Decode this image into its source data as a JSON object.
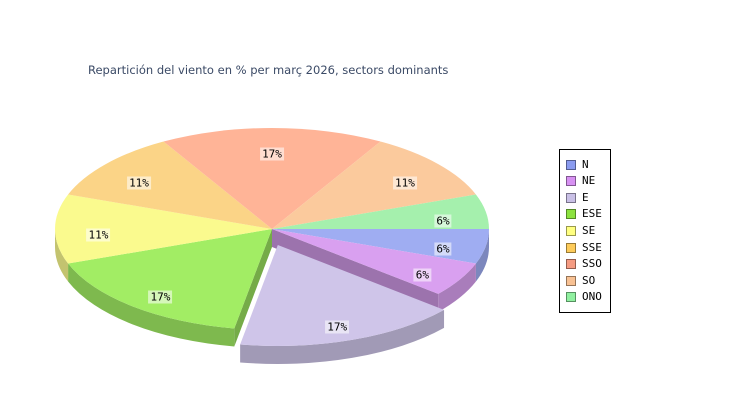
{
  "chart_data": {
    "type": "pie",
    "three_d": true,
    "title": "Repartición del viento en % per març 2026, sectors dominants",
    "title_color": "#3b4a66",
    "background_color": "#ffffff",
    "legend_position": "right",
    "exploded_slice": "E",
    "label_text_color": "#000000",
    "slices": [
      {
        "label": "N",
        "percent_label": "6%",
        "percent": 6,
        "share_deg": 20,
        "color": "#9fadf2",
        "legend_color": "#8a9bf0"
      },
      {
        "label": "NE",
        "percent_label": "6%",
        "percent": 6,
        "share_deg": 20,
        "color": "#d9a0f0",
        "legend_color": "#d791f2"
      },
      {
        "label": "E",
        "percent_label": "17%",
        "percent": 17,
        "share_deg": 60,
        "color": "#cfc5e9",
        "legend_color": "#c9c0e6"
      },
      {
        "label": "ESE",
        "percent_label": "17%",
        "percent": 17,
        "share_deg": 60,
        "color": "#a2ed64",
        "legend_color": "#8ce23f"
      },
      {
        "label": "SE",
        "percent_label": "11%",
        "percent": 11,
        "share_deg": 40,
        "color": "#fafa8e",
        "legend_color": "#ffff80"
      },
      {
        "label": "SSE",
        "percent_label": "11%",
        "percent": 11,
        "share_deg": 40,
        "color": "#fbd487",
        "legend_color": "#fdcb5a"
      },
      {
        "label": "SSO",
        "percent_label": "17%",
        "percent": 17,
        "share_deg": 60,
        "color": "#ffb497",
        "legend_color": "#f59b82"
      },
      {
        "label": "SO",
        "percent_label": "11%",
        "percent": 11,
        "share_deg": 40,
        "color": "#fbca9d",
        "legend_color": "#f8c193"
      },
      {
        "label": "ONO",
        "percent_label": "6%",
        "percent": 6,
        "share_deg": 20,
        "color": "#a5f0ad",
        "legend_color": "#90f0a0"
      }
    ]
  }
}
